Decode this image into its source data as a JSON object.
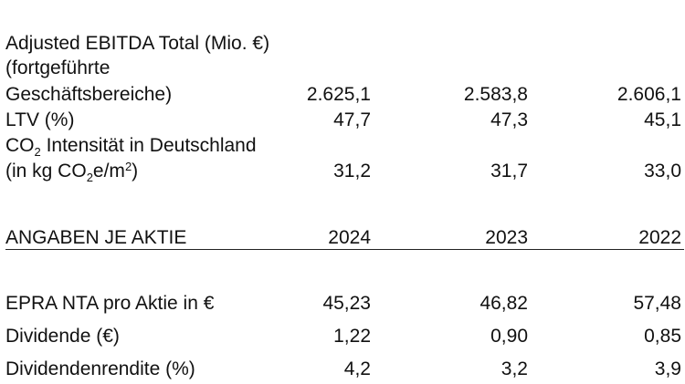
{
  "top_table": {
    "rows": [
      {
        "label_lines": [
          "Adjusted EBITDA Total (Mio. €)",
          "(fortgeführte",
          "Geschäftsbereiche)"
        ],
        "values": [
          "2.625,1",
          "2.583,8",
          "2.606,1"
        ]
      },
      {
        "label_lines": [
          "LTV (%)"
        ],
        "values": [
          "47,7",
          "47,3",
          "45,1"
        ]
      },
      {
        "label_line1_pre": "CO",
        "label_line1_sub": "2",
        "label_line1_post": " Intensität in Deutschland",
        "label_line2_pre": "(in kg CO",
        "label_line2_sub": "2",
        "label_line2_mid": "e/m",
        "label_line2_sup": "2",
        "label_line2_post": ")",
        "values": [
          "31,2",
          "31,7",
          "33,0"
        ]
      }
    ]
  },
  "share_section": {
    "heading": "ANGABEN JE AKTIE",
    "years": [
      "2024",
      "2023",
      "2022"
    ],
    "rows": [
      {
        "label": "EPRA NTA pro Aktie in €",
        "values": [
          "45,23",
          "46,82",
          "57,48"
        ]
      },
      {
        "label": "Dividende (€)",
        "values": [
          "1,22",
          "0,90",
          "0,85"
        ]
      },
      {
        "label": "Dividendenrendite (%)",
        "values": [
          "4,2",
          "3,2",
          "3,9"
        ]
      }
    ]
  }
}
